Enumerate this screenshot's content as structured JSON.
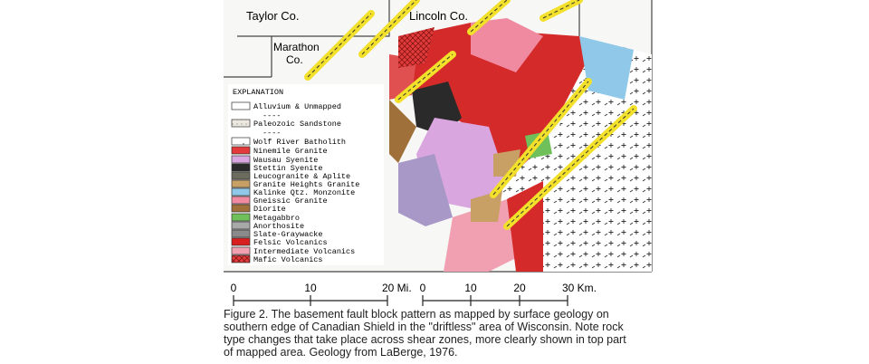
{
  "map": {
    "counties": {
      "taylor": "Taylor Co.",
      "lincoln": "Lincoln Co.",
      "marathon": [
        "Marathon",
        "Co."
      ]
    },
    "legend": {
      "title": "EXPLANATION",
      "items": [
        {
          "label": "Alluvium & Unmapped",
          "color": "#ffffff"
        },
        {
          "label": "----"
        },
        {
          "label": "Paleozoic Sandstone",
          "color": "#f4f0ea"
        },
        {
          "label": "----"
        },
        {
          "label": "Wolf River Batholith",
          "color": "#ffffff"
        },
        {
          "label": "Ninemile Granite",
          "color": "#e23a3a"
        },
        {
          "label": "Wausau Syenite",
          "color": "#d9a6e0"
        },
        {
          "label": "Stettin Syenite",
          "color": "#2a2a2a"
        },
        {
          "label": "Leucogranite & Aplite",
          "color": "#6b6b5e"
        },
        {
          "label": "Granite Heights Granite",
          "color": "#c8a066"
        },
        {
          "label": "Kalinke Qtz. Monzonite",
          "color": "#8fc8e8"
        },
        {
          "label": "Gneissic Granite",
          "color": "#f08aa0"
        },
        {
          "label": "Diorite",
          "color": "#a0703a"
        },
        {
          "label": "Metagabbro",
          "color": "#6fbf5a"
        },
        {
          "label": "Anorthosite",
          "color": "#a8a8a8"
        },
        {
          "label": "Slate-Graywacke",
          "color": "#8a8a8a"
        },
        {
          "label": "Felsic Volcanics",
          "color": "#d81e1e"
        },
        {
          "label": "Intermediate Volcanics",
          "color": "#f0a0b0"
        },
        {
          "label": "Mafic Volcanics",
          "color": "#e05050"
        }
      ]
    },
    "scale_miles": [
      "0",
      "10",
      "20 Mi."
    ],
    "scale_km": [
      "0",
      "10",
      "20",
      "30 Km."
    ]
  },
  "caption": [
    "Figure 2.  The basement fault block pattern as mapped by surface geology on",
    "southern edge of Canadian Shield in the \"driftless\" area of Wisconsin.  Note rock",
    "type changes that take place across shear zones, more clearly shown in top part",
    "of mapped area.  Geology from LaBerge, 1976."
  ]
}
